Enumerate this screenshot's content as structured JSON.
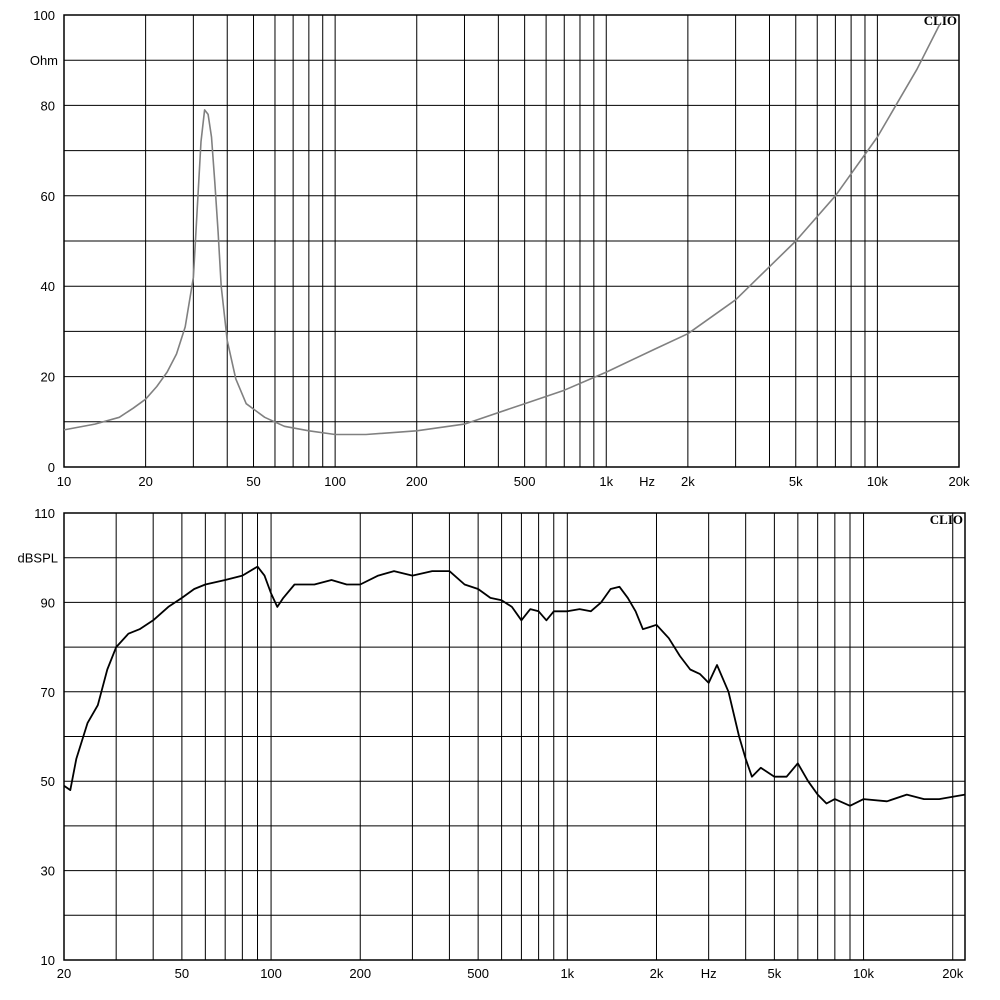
{
  "chart_data": [
    {
      "type": "line",
      "brand": "CLIO",
      "xlabel": "Hz",
      "ylabel": "Ohm",
      "x_scale": "log",
      "xlim": [
        10,
        20000
      ],
      "ylim": [
        0,
        100
      ],
      "grid": true,
      "line_color": "#808080",
      "x_tick_labels": [
        {
          "v": 10,
          "t": "10"
        },
        {
          "v": 20,
          "t": "20"
        },
        {
          "v": 50,
          "t": "50"
        },
        {
          "v": 100,
          "t": "100"
        },
        {
          "v": 200,
          "t": "200"
        },
        {
          "v": 500,
          "t": "500"
        },
        {
          "v": 1000,
          "t": "1k"
        },
        {
          "v": 2000,
          "t": "2k"
        },
        {
          "v": 5000,
          "t": "5k"
        },
        {
          "v": 10000,
          "t": "10k"
        },
        {
          "v": 20000,
          "t": "20k"
        }
      ],
      "y_tick_labels": [
        {
          "v": 0,
          "t": "0"
        },
        {
          "v": 20,
          "t": "20"
        },
        {
          "v": 40,
          "t": "40"
        },
        {
          "v": 60,
          "t": "60"
        },
        {
          "v": 80,
          "t": "80"
        },
        {
          "v": 100,
          "t": "100"
        }
      ],
      "series": [
        {
          "x": [
            10,
            13,
            16,
            18,
            20,
            22,
            24,
            26,
            28,
            30,
            31,
            32,
            33,
            34,
            35,
            36,
            37,
            38,
            40,
            43,
            47,
            55,
            65,
            80,
            100,
            130,
            200,
            300,
            500,
            700,
            1000,
            1500,
            2000,
            3000,
            5000,
            7000,
            10000,
            14000,
            17000
          ],
          "y": [
            8.2,
            9.5,
            11,
            13,
            15,
            17.8,
            21,
            25,
            31,
            42,
            57,
            72,
            79,
            78,
            73,
            63,
            52,
            40,
            28,
            19.5,
            14,
            11,
            9,
            8,
            7.2,
            7.2,
            8,
            9.5,
            14,
            17,
            21,
            26,
            29.5,
            37,
            50,
            60,
            73,
            88,
            98
          ]
        }
      ]
    },
    {
      "type": "line",
      "brand": "CLIO",
      "xlabel": "Hz",
      "ylabel": "dBSPL",
      "x_scale": "log",
      "xlim": [
        20,
        22000
      ],
      "ylim": [
        10,
        110
      ],
      "grid": true,
      "line_color": "#000000",
      "x_tick_labels": [
        {
          "v": 20,
          "t": "20"
        },
        {
          "v": 50,
          "t": "50"
        },
        {
          "v": 100,
          "t": "100"
        },
        {
          "v": 200,
          "t": "200"
        },
        {
          "v": 500,
          "t": "500"
        },
        {
          "v": 1000,
          "t": "1k"
        },
        {
          "v": 2000,
          "t": "2k"
        },
        {
          "v": 5000,
          "t": "5k"
        },
        {
          "v": 10000,
          "t": "10k"
        },
        {
          "v": 20000,
          "t": "20k"
        }
      ],
      "y_tick_labels": [
        {
          "v": 10,
          "t": "10"
        },
        {
          "v": 30,
          "t": "30"
        },
        {
          "v": 50,
          "t": "50"
        },
        {
          "v": 70,
          "t": "70"
        },
        {
          "v": 90,
          "t": "90"
        },
        {
          "v": 110,
          "t": "110"
        }
      ],
      "series": [
        {
          "x": [
            20,
            21,
            22,
            24,
            26,
            28,
            30,
            33,
            36,
            40,
            45,
            50,
            55,
            60,
            70,
            80,
            90,
            95,
            100,
            105,
            110,
            120,
            140,
            160,
            180,
            200,
            230,
            260,
            300,
            350,
            400,
            450,
            500,
            550,
            600,
            650,
            700,
            750,
            800,
            850,
            900,
            1000,
            1100,
            1200,
            1300,
            1400,
            1500,
            1600,
            1700,
            1800,
            1900,
            2000,
            2200,
            2400,
            2600,
            2800,
            3000,
            3200,
            3500,
            3800,
            4000,
            4200,
            4500,
            5000,
            5500,
            6000,
            6500,
            7000,
            7500,
            8000,
            9000,
            10000,
            12000,
            14000,
            16000,
            18000,
            20000,
            22000
          ],
          "y": [
            49,
            48,
            55,
            63,
            67,
            75,
            80,
            83,
            84,
            86,
            89,
            91,
            93,
            94,
            95,
            96,
            98,
            96,
            92,
            89,
            91,
            94,
            94,
            95,
            94,
            94,
            96,
            97,
            96,
            97,
            97,
            94,
            93,
            91,
            90.5,
            89,
            86,
            88.5,
            88,
            86,
            88,
            88,
            88.5,
            88,
            90,
            93,
            93.5,
            91,
            88,
            84,
            84.5,
            85,
            82,
            78,
            75,
            74,
            72,
            76,
            70,
            60,
            55,
            51,
            53,
            51,
            51,
            54,
            50,
            47,
            45,
            46,
            44.5,
            46,
            45.5,
            47,
            46,
            46,
            46.5,
            47
          ]
        }
      ]
    }
  ]
}
